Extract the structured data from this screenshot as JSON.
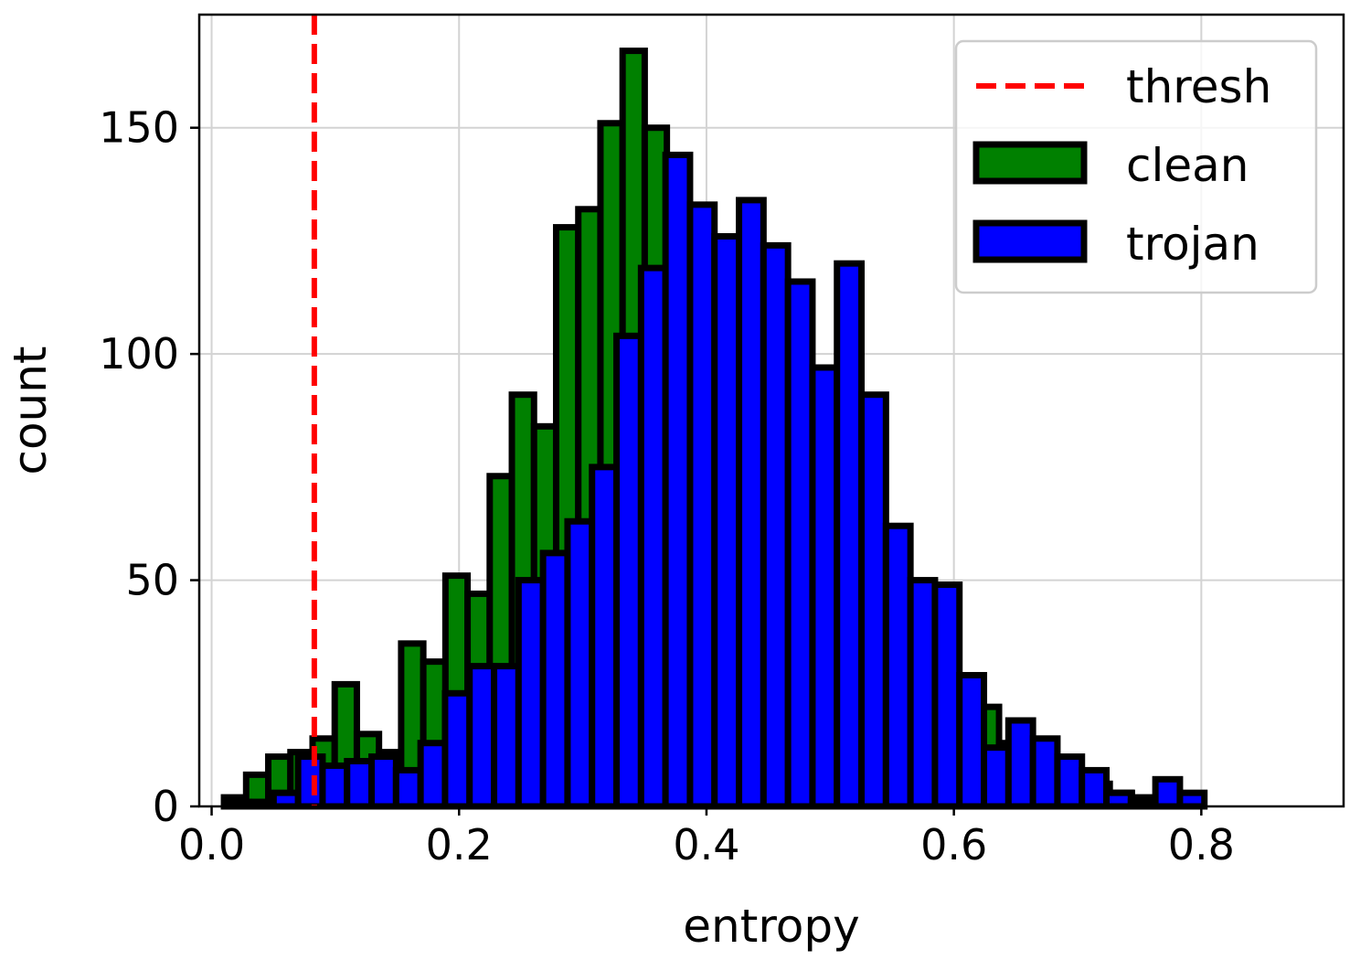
{
  "chart_data": {
    "type": "bar",
    "xlabel": "entropy",
    "ylabel": "count",
    "xlim": [
      -0.01,
      0.915
    ],
    "ylim": [
      0,
      175
    ],
    "x_ticks": [
      "0.0",
      "0.2",
      "0.4",
      "0.6",
      "0.8"
    ],
    "y_ticks": [
      "0",
      "50",
      "100",
      "150"
    ],
    "grid": true,
    "legend_position": "top-right",
    "threshold": {
      "name": "thresh",
      "x": 0.083,
      "color": "#ff0000",
      "style": "dashed"
    },
    "series": [
      {
        "name": "clean",
        "color": "#008000",
        "bin_start": 0.01,
        "bin_width": 0.0179,
        "values": [
          2,
          7,
          11,
          12,
          15,
          27,
          16,
          12,
          36,
          32,
          51,
          47,
          73,
          91,
          84,
          128,
          132,
          151,
          167,
          150,
          120,
          128,
          105,
          72,
          58,
          50,
          63,
          35,
          44,
          24,
          31,
          24,
          28,
          18,
          22,
          14,
          12,
          9,
          6,
          5,
          3,
          2,
          0,
          0
        ]
      },
      {
        "name": "trojan",
        "color": "#0000ff",
        "bin_start": 0.0105,
        "bin_width": 0.0198,
        "values": [
          1,
          1,
          3,
          11,
          9,
          10,
          11,
          8,
          14,
          25,
          31,
          31,
          50,
          56,
          63,
          75,
          104,
          119,
          144,
          133,
          126,
          134,
          124,
          116,
          97,
          120,
          91,
          62,
          50,
          49,
          29,
          13,
          19,
          15,
          11,
          8,
          3,
          1,
          6,
          3
        ]
      }
    ]
  }
}
